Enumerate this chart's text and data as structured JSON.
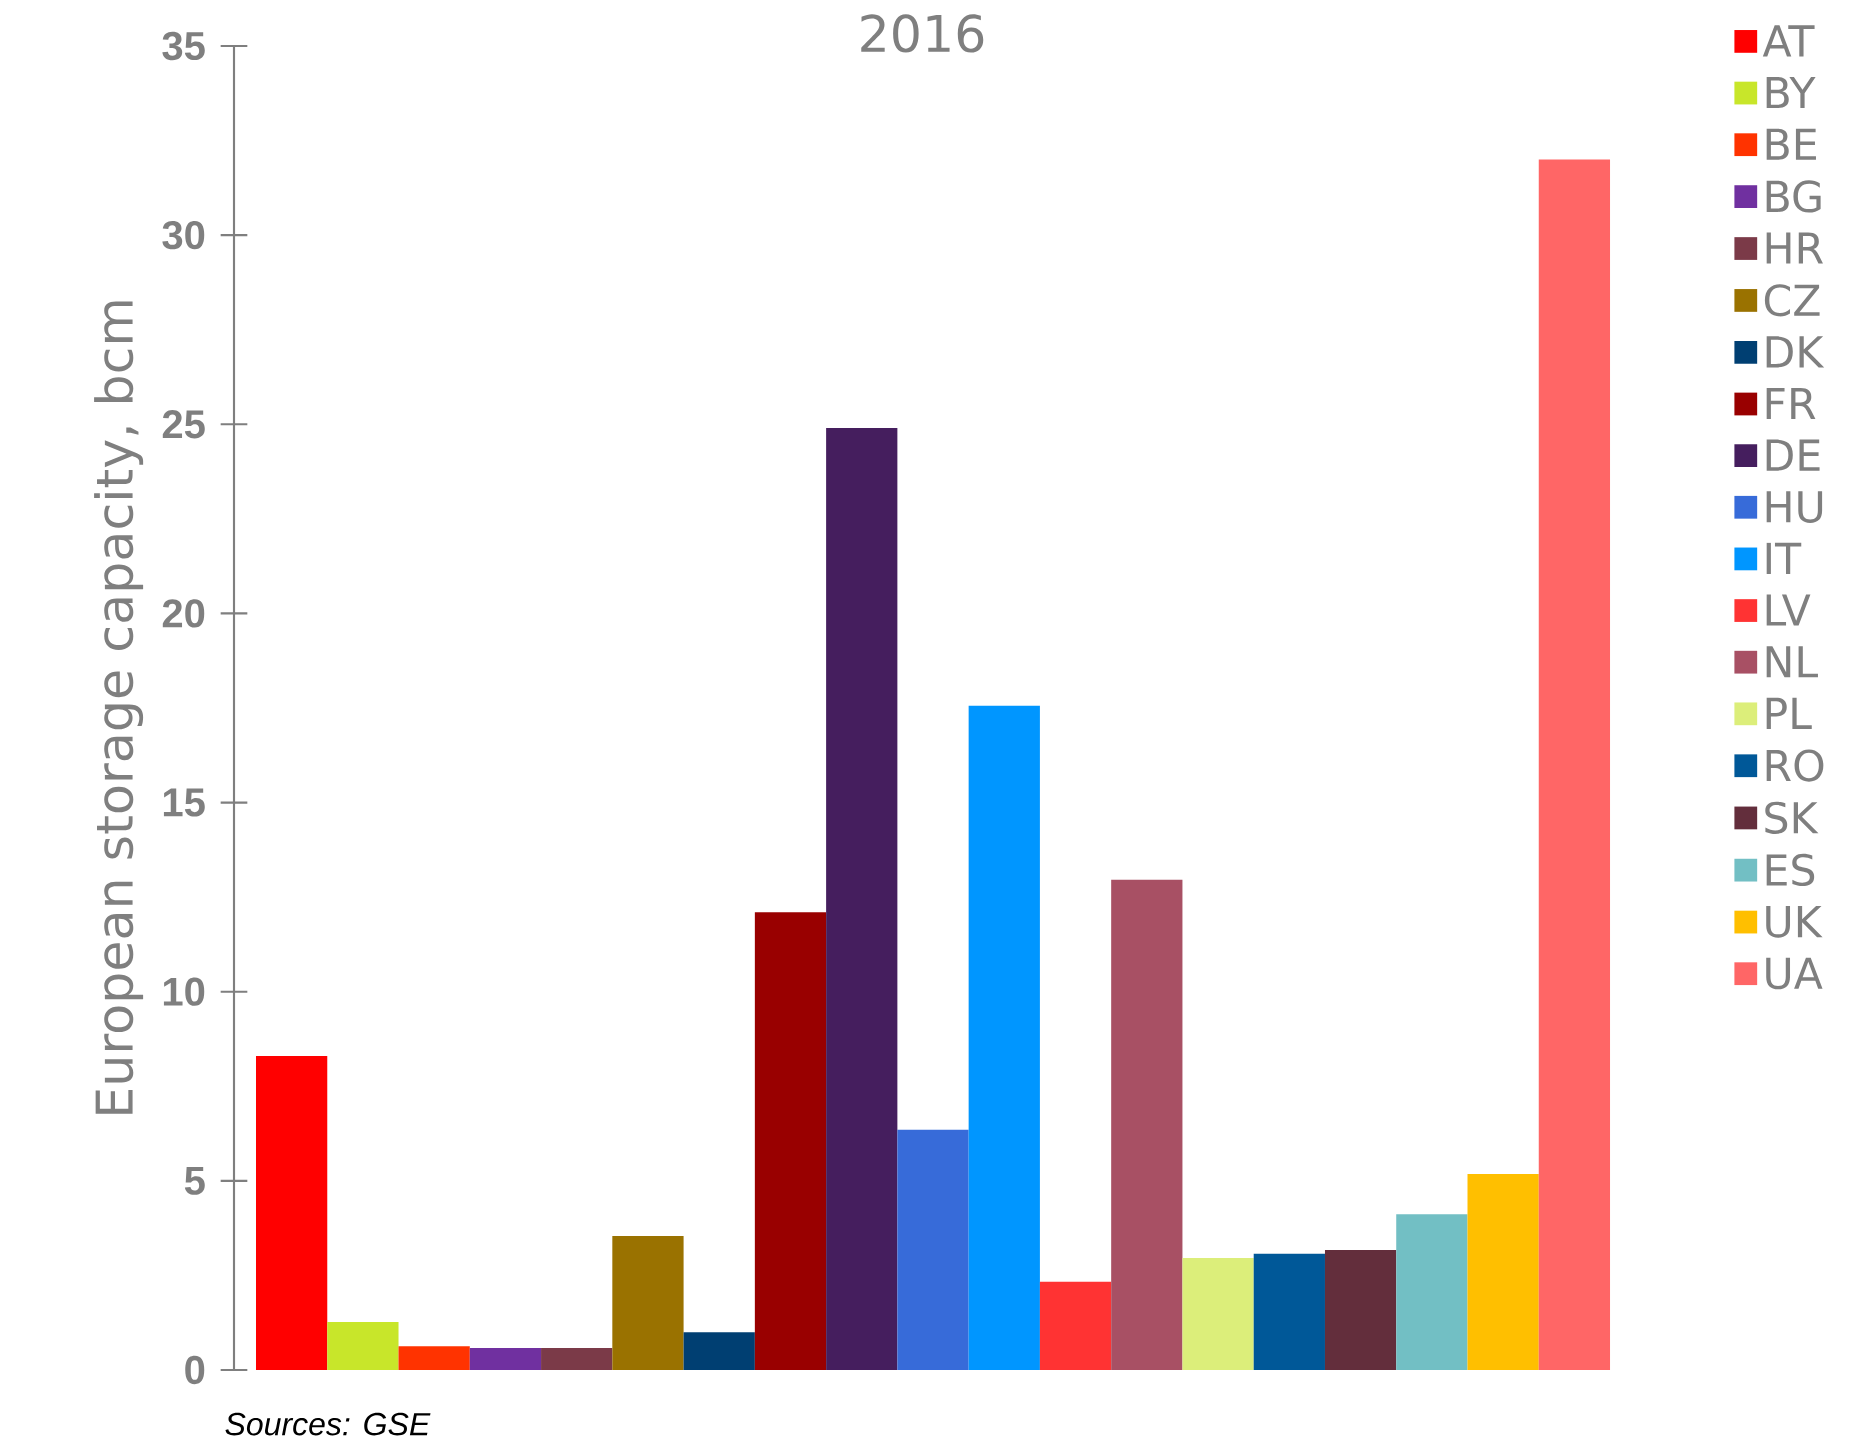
{
  "chart_data": {
    "type": "bar",
    "title": "2016",
    "ylabel": "European storage capacity, bcm",
    "categories": [
      null
    ],
    "series": [
      {
        "name": "AT",
        "color": "#ff0000",
        "values": [
          8.3
        ]
      },
      {
        "name": "BY",
        "color": "#c8e62a",
        "values": [
          1.27
        ]
      },
      {
        "name": "BE",
        "color": "#ff3300",
        "values": [
          0.63
        ]
      },
      {
        "name": "BG",
        "color": "#7030a0",
        "values": [
          0.58
        ]
      },
      {
        "name": "HR",
        "color": "#7b3a48",
        "values": [
          0.58
        ]
      },
      {
        "name": "CZ",
        "color": "#9a7200",
        "values": [
          3.54
        ]
      },
      {
        "name": "DK",
        "color": "#003f72",
        "values": [
          1.0
        ]
      },
      {
        "name": "FR",
        "color": "#990000",
        "values": [
          12.1
        ]
      },
      {
        "name": "DE",
        "color": "#451e5e",
        "values": [
          24.9
        ]
      },
      {
        "name": "HU",
        "color": "#376bd9",
        "values": [
          6.35
        ]
      },
      {
        "name": "IT",
        "color": "#0096ff",
        "values": [
          17.56
        ]
      },
      {
        "name": "LV",
        "color": "#ff3333",
        "values": [
          2.33
        ]
      },
      {
        "name": "NL",
        "color": "#a85064",
        "values": [
          12.96
        ]
      },
      {
        "name": "PL",
        "color": "#dcee7a",
        "values": [
          2.96
        ]
      },
      {
        "name": "RO",
        "color": "#005898",
        "values": [
          3.07
        ]
      },
      {
        "name": "SK",
        "color": "#632e3c",
        "values": [
          3.17
        ]
      },
      {
        "name": "ES",
        "color": "#72bfc4",
        "values": [
          4.12
        ]
      },
      {
        "name": "UK",
        "color": "#ffbf00",
        "values": [
          5.18
        ]
      },
      {
        "name": "UA",
        "color": "#ff6666",
        "values": [
          32.0
        ]
      }
    ],
    "ylim": [
      0,
      35
    ],
    "yticks": [
      0,
      5,
      10,
      15,
      20,
      25,
      30,
      35
    ],
    "legend": "right",
    "annotations": [
      "Sources: GSE"
    ]
  }
}
